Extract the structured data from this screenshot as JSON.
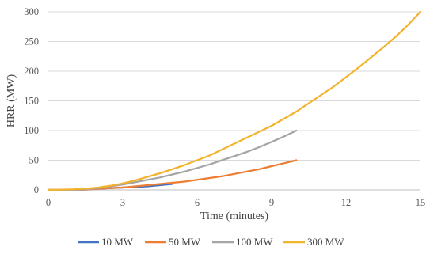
{
  "chart_data": {
    "type": "line",
    "title": "",
    "xlabel": "Time (minutes)",
    "ylabel": "HRR (MW)",
    "xlim": [
      0,
      15
    ],
    "ylim": [
      0,
      300
    ],
    "x_ticks": [
      "0",
      "3",
      "6",
      "9",
      "12",
      "15"
    ],
    "y_ticks": [
      "0",
      "50",
      "100",
      "150",
      "200",
      "250",
      "300"
    ],
    "grid": "horizontal",
    "legend_position": "bottom",
    "series": [
      {
        "name": "10 MW",
        "color": "#4472C4",
        "points": [
          [
            0,
            0
          ],
          [
            1,
            0
          ],
          [
            1.5,
            0.5
          ],
          [
            2,
            2
          ],
          [
            2.5,
            3
          ],
          [
            3,
            4
          ],
          [
            3.5,
            5
          ],
          [
            4,
            6
          ],
          [
            4.5,
            8
          ],
          [
            5,
            10
          ]
        ]
      },
      {
        "name": "50 MW",
        "color": "#ED7D31",
        "points": [
          [
            0,
            0
          ],
          [
            1,
            0
          ],
          [
            1.5,
            0.5
          ],
          [
            2,
            2
          ],
          [
            2.5,
            3
          ],
          [
            3,
            4
          ],
          [
            3.5,
            6
          ],
          [
            4,
            8
          ],
          [
            4.5,
            10
          ],
          [
            5,
            12
          ],
          [
            5.5,
            14
          ],
          [
            6,
            17
          ],
          [
            6.5,
            20
          ],
          [
            7,
            23
          ],
          [
            7.5,
            27
          ],
          [
            8,
            31
          ],
          [
            8.5,
            35
          ],
          [
            9,
            40
          ],
          [
            9.5,
            45
          ],
          [
            10,
            50
          ]
        ]
      },
      {
        "name": "100 MW",
        "color": "#A5A5A5",
        "points": [
          [
            0,
            0
          ],
          [
            1,
            0
          ],
          [
            1.5,
            1
          ],
          [
            2,
            3
          ],
          [
            2.5,
            6
          ],
          [
            3,
            9
          ],
          [
            3.5,
            13
          ],
          [
            4,
            17
          ],
          [
            4.5,
            21
          ],
          [
            5,
            26
          ],
          [
            5.5,
            31
          ],
          [
            6,
            37
          ],
          [
            6.5,
            43
          ],
          [
            7,
            50
          ],
          [
            7.5,
            57
          ],
          [
            8,
            64
          ],
          [
            8.5,
            72
          ],
          [
            9,
            81
          ],
          [
            9.5,
            90
          ],
          [
            10,
            100
          ]
        ]
      },
      {
        "name": "300 MW",
        "color": "#F2B32D",
        "points": [
          [
            0,
            0
          ],
          [
            1,
            1
          ],
          [
            1.5,
            2
          ],
          [
            2,
            4
          ],
          [
            2.5,
            7
          ],
          [
            3,
            11
          ],
          [
            3.5,
            16
          ],
          [
            4,
            22
          ],
          [
            4.5,
            28
          ],
          [
            5,
            35
          ],
          [
            5.5,
            42
          ],
          [
            6,
            50
          ],
          [
            6.5,
            58
          ],
          [
            7,
            68
          ],
          [
            7.5,
            78
          ],
          [
            8,
            88
          ],
          [
            8.5,
            98
          ],
          [
            9,
            108
          ],
          [
            9.5,
            120
          ],
          [
            10,
            132
          ],
          [
            10.5,
            146
          ],
          [
            11,
            160
          ],
          [
            11.5,
            174
          ],
          [
            12,
            190
          ],
          [
            12.5,
            206
          ],
          [
            13,
            223
          ],
          [
            13.5,
            240
          ],
          [
            14,
            258
          ],
          [
            14.5,
            278
          ],
          [
            15,
            300
          ]
        ]
      }
    ]
  }
}
